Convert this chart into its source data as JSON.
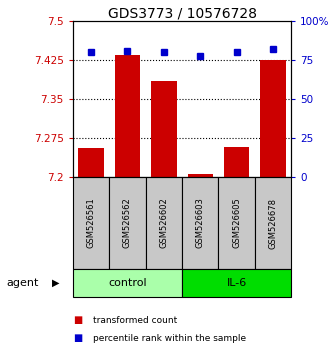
{
  "title": "GDS3773 / 10576728",
  "samples": [
    "GSM526561",
    "GSM526562",
    "GSM526602",
    "GSM526603",
    "GSM526605",
    "GSM526678"
  ],
  "red_values": [
    7.255,
    7.435,
    7.385,
    7.205,
    7.258,
    7.425
  ],
  "blue_values": [
    80,
    81,
    80,
    78,
    80,
    82
  ],
  "ylim_left": [
    7.2,
    7.5
  ],
  "ylim_right": [
    0,
    100
  ],
  "yticks_left": [
    7.2,
    7.275,
    7.35,
    7.425,
    7.5
  ],
  "ytick_labels_left": [
    "7.2",
    "7.275",
    "7.35",
    "7.425",
    "7.5"
  ],
  "yticks_right": [
    0,
    25,
    50,
    75,
    100
  ],
  "ytick_labels_right": [
    "0",
    "25",
    "50",
    "75",
    "100%"
  ],
  "groups": [
    {
      "label": "control",
      "indices": [
        0,
        1,
        2
      ],
      "color": "#AAFFAA"
    },
    {
      "label": "IL-6",
      "indices": [
        3,
        4,
        5
      ],
      "color": "#00DD00"
    }
  ],
  "agent_label": "agent",
  "bar_color": "#CC0000",
  "dot_color": "#0000CC",
  "bar_width": 0.7,
  "title_fontsize": 10,
  "figsize": [
    3.31,
    3.54
  ],
  "dpi": 100
}
